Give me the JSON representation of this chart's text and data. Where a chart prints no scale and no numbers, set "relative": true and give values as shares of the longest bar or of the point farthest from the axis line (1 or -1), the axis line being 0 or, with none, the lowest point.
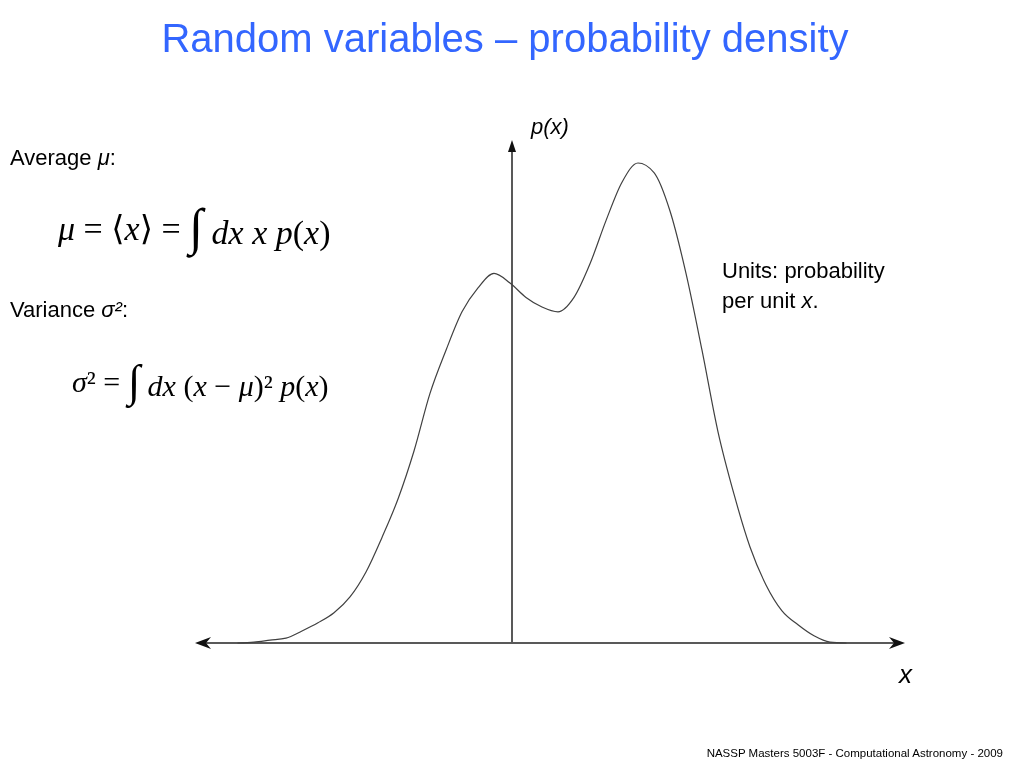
{
  "chart_data": {
    "type": "line",
    "title": "Random variables – probability density",
    "xlabel": "x",
    "ylabel": "p(x)",
    "relative": true,
    "annotations": [
      "Average μ:",
      "μ = ⟨x⟩ = ∫ dx x p(x)",
      "Variance σ²:",
      "σ² = ∫ dx (x − μ)² p(x)",
      "Units: probability per unit x.",
      "NASSP Masters 5003F - Computational Astronomy - 2009"
    ],
    "categories": [
      null,
      null,
      null,
      null,
      null,
      null,
      null,
      null,
      null,
      null,
      null,
      null,
      null,
      null,
      null,
      null,
      null,
      null,
      null,
      null,
      null,
      null,
      null,
      null,
      null,
      null,
      null,
      null,
      null,
      null,
      null,
      null,
      null,
      null,
      null,
      null,
      null,
      null,
      null
    ],
    "series": [
      {
        "color": "#404040",
        "values": [
          0,
          0.002,
          0.006,
          0.01,
          0.025,
          0.042,
          0.063,
          0.096,
          0.148,
          0.22,
          0.3,
          0.4,
          0.52,
          0.61,
          0.69,
          0.74,
          0.77,
          0.75,
          0.72,
          0.7,
          0.69,
          0.72,
          0.79,
          0.88,
          0.96,
          1,
          0.98,
          0.9,
          0.77,
          0.61,
          0.44,
          0.31,
          0.2,
          0.121,
          0.067,
          0.038,
          0.015,
          0.002,
          0
        ]
      }
    ]
  }
}
